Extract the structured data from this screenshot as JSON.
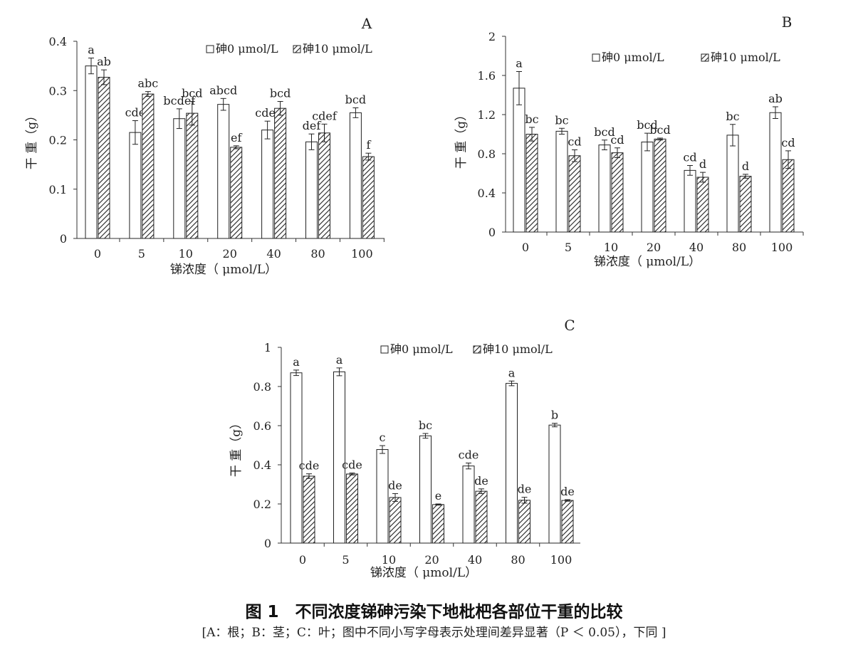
{
  "caption": {
    "title": "图 1　不同浓度锑砷污染下地枇杷各部位干重的比较",
    "note": "[A：根；B：茎；C：叶；图中不同小写字母表示处理间差异显著（P ＜ 0.05），下同 ]"
  },
  "colors": {
    "bar_outline": "#222222",
    "open_fill": "#ffffff",
    "hatch_line": "#222222"
  },
  "chart_data": [
    {
      "panel": "A",
      "type": "bar",
      "ylabel": "干 重（g）",
      "xlabel": "锑浓度（ μmol/L）",
      "categories": [
        "0",
        "5",
        "10",
        "20",
        "40",
        "80",
        "100"
      ],
      "ylim": [
        0,
        0.4
      ],
      "yticks": [
        "0",
        "0.1",
        "0.2",
        "0.3",
        "0.4"
      ],
      "ytick_values": [
        0,
        0.1,
        0.2,
        0.3,
        0.4
      ],
      "legend_position": "top-right",
      "series": [
        {
          "name": "砷0 μmol/L",
          "fill": "open",
          "values": [
            0.35,
            0.215,
            0.243,
            0.272,
            0.22,
            0.196,
            0.255
          ],
          "errors": [
            0.016,
            0.024,
            0.02,
            0.012,
            0.018,
            0.016,
            0.01
          ],
          "labels": [
            "a",
            "cde",
            "bcdef",
            "abcd",
            "cdef",
            "def",
            "bcd"
          ]
        },
        {
          "name": "砷10 μmol/L",
          "fill": "hatched",
          "values": [
            0.327,
            0.293,
            0.254,
            0.185,
            0.264,
            0.214,
            0.166
          ],
          "errors": [
            0.015,
            0.005,
            0.024,
            0.003,
            0.014,
            0.018,
            0.007
          ],
          "labels": [
            "ab",
            "abc",
            "bcd",
            "ef",
            "bcd",
            "cdef",
            "f"
          ]
        }
      ]
    },
    {
      "panel": "B",
      "type": "bar",
      "ylabel": "干 重（g）",
      "xlabel": "锑浓度（ μmol/L）",
      "categories": [
        "0",
        "5",
        "10",
        "20",
        "40",
        "80",
        "100"
      ],
      "ylim": [
        0,
        2
      ],
      "yticks": [
        "0",
        "0.4",
        "0.8",
        "1.2",
        "1.6",
        "2"
      ],
      "ytick_values": [
        0,
        0.4,
        0.8,
        1.2,
        1.6,
        2
      ],
      "legend_position": "top-right",
      "series": [
        {
          "name": "砷0 μmol/L",
          "fill": "open",
          "values": [
            1.47,
            1.03,
            0.89,
            0.92,
            0.63,
            0.99,
            1.22
          ],
          "errors": [
            0.17,
            0.03,
            0.05,
            0.09,
            0.05,
            0.11,
            0.06
          ],
          "labels": [
            "a",
            "bc",
            "bcd",
            "bcd",
            "cd",
            "bc",
            "ab"
          ]
        },
        {
          "name": "砷10 μmol/L",
          "fill": "hatched",
          "values": [
            1.0,
            0.78,
            0.81,
            0.95,
            0.56,
            0.57,
            0.74
          ],
          "errors": [
            0.07,
            0.06,
            0.05,
            0.01,
            0.05,
            0.02,
            0.09
          ],
          "labels": [
            "bc",
            "cd",
            "cd",
            "bcd",
            "d",
            "d",
            "cd"
          ]
        }
      ]
    },
    {
      "panel": "C",
      "type": "bar",
      "ylabel": "干 重（g）",
      "xlabel": "锑浓度（ μmol/L）",
      "categories": [
        "0",
        "5",
        "10",
        "20",
        "40",
        "80",
        "100"
      ],
      "ylim": [
        0,
        1
      ],
      "yticks": [
        "0",
        "0.2",
        "0.4",
        "0.6",
        "0.8",
        "1"
      ],
      "ytick_values": [
        0,
        0.2,
        0.4,
        0.6,
        0.8,
        1
      ],
      "legend_position": "top-right",
      "series": [
        {
          "name": "砷0 μmol/L",
          "fill": "open",
          "values": [
            0.87,
            0.875,
            0.478,
            0.548,
            0.394,
            0.816,
            0.603
          ],
          "errors": [
            0.014,
            0.02,
            0.02,
            0.012,
            0.015,
            0.012,
            0.009
          ],
          "labels": [
            "a",
            "a",
            "c",
            "bc",
            "cde",
            "a",
            "b"
          ]
        },
        {
          "name": "砷10 μmol/L",
          "fill": "hatched",
          "values": [
            0.342,
            0.353,
            0.233,
            0.197,
            0.265,
            0.219,
            0.218
          ],
          "errors": [
            0.012,
            0.005,
            0.02,
            0.003,
            0.012,
            0.015,
            0.004
          ],
          "labels": [
            "cde",
            "cde",
            "de",
            "e",
            "de",
            "de",
            "de"
          ]
        }
      ]
    }
  ]
}
